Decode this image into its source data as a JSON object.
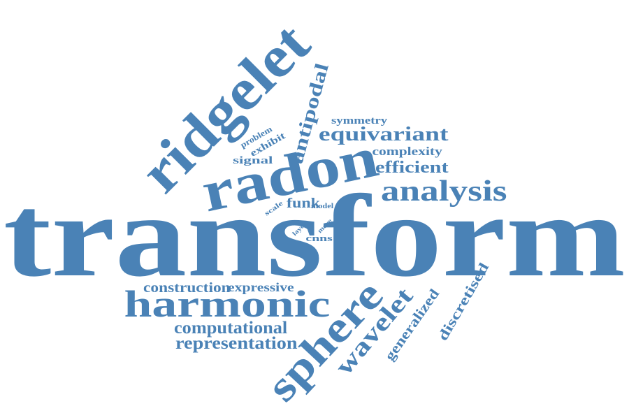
{
  "colors": {
    "word": "#4a82b6",
    "background": "#ffffff"
  },
  "words": [
    {
      "id": "transform",
      "text": "transform"
    },
    {
      "id": "ridgelet",
      "text": "ridgelet"
    },
    {
      "id": "radon",
      "text": "radon"
    },
    {
      "id": "sphere",
      "text": "sphere"
    },
    {
      "id": "harmonic",
      "text": "harmonic"
    },
    {
      "id": "analysis",
      "text": "analysis"
    },
    {
      "id": "wavelet",
      "text": "wavelet"
    },
    {
      "id": "equivariant",
      "text": "equivariant"
    },
    {
      "id": "antipodal",
      "text": "antipodal"
    },
    {
      "id": "efficient",
      "text": "efficient"
    },
    {
      "id": "complexity",
      "text": "complexity"
    },
    {
      "id": "symmetry",
      "text": "symmetry"
    },
    {
      "id": "signal",
      "text": "signal"
    },
    {
      "id": "exhibit",
      "text": "exhibit"
    },
    {
      "id": "problem",
      "text": "problem"
    },
    {
      "id": "funk",
      "text": "funk"
    },
    {
      "id": "scale",
      "text": "scale"
    },
    {
      "id": "model",
      "text": "model"
    },
    {
      "id": "layer",
      "text": "layer"
    },
    {
      "id": "more",
      "text": "more"
    },
    {
      "id": "cnns",
      "text": "cnns"
    },
    {
      "id": "construction",
      "text": "construction"
    },
    {
      "id": "expressive",
      "text": "expressive"
    },
    {
      "id": "computational",
      "text": "computational"
    },
    {
      "id": "representation",
      "text": "representation"
    },
    {
      "id": "generalized",
      "text": "generalized"
    },
    {
      "id": "discretised",
      "text": "discretised"
    }
  ]
}
